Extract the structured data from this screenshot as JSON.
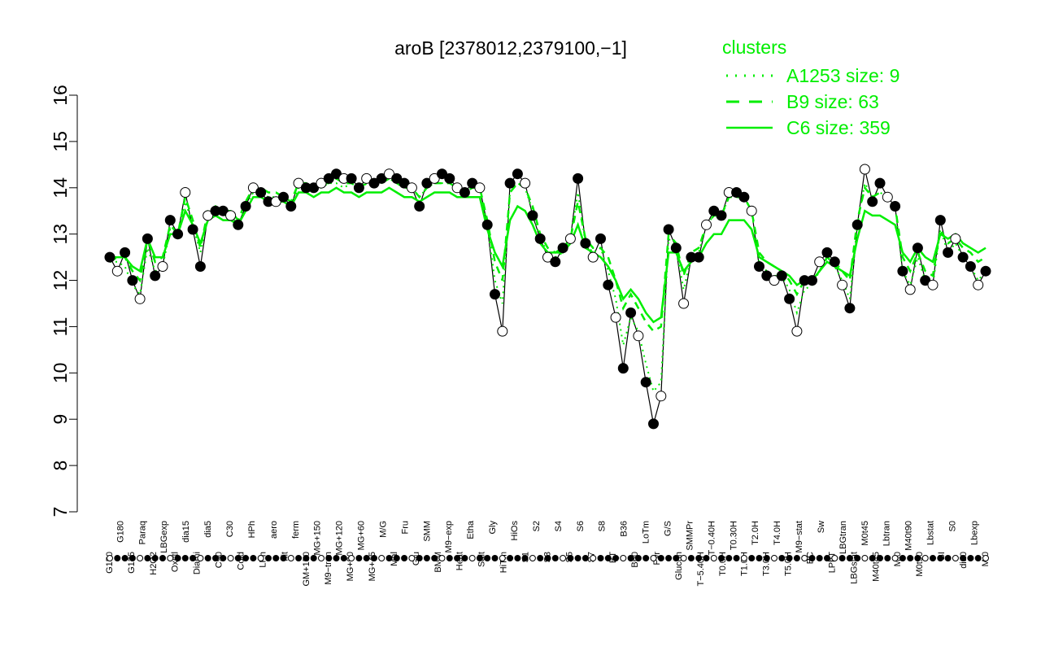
{
  "chart_data": {
    "type": "line",
    "title": "aroB [2378012,2379100,−1]",
    "xlabel": "",
    "ylabel": "",
    "ylim": [
      7,
      16
    ],
    "yticks": [
      7,
      8,
      9,
      10,
      11,
      12,
      13,
      14,
      15,
      16
    ],
    "grid": false,
    "legend": {
      "title": "clusters",
      "placement": "top-right",
      "entries": [
        {
          "label": "A1253 size: 9",
          "style": "dotted"
        },
        {
          "label": "B9 size: 63",
          "style": "dashed"
        },
        {
          "label": "C6 size: 359",
          "style": "solid"
        }
      ]
    },
    "colors": {
      "accent": "#00ee00",
      "points": "#000000"
    },
    "x_tick_labels": [
      "G150",
      "G180",
      "G135",
      "Paraq",
      "H2O2",
      "LBGexp",
      "Oxctl",
      "dia15",
      "Diami",
      "dia5",
      "C90",
      "C30",
      "Cold",
      "HPh",
      "LPh",
      "aero",
      "nit",
      "ferm",
      "GM+150",
      "MG+150",
      "M9−tran",
      "MG+120",
      "MG+90",
      "MG+60",
      "MG+45",
      "M/G",
      "Mal",
      "Fru",
      "Glu",
      "SMM",
      "BMM",
      "M9−exp",
      "Heat",
      "Etha",
      "Salt",
      "Gly",
      "HiTm",
      "HiOs",
      "S1",
      "S2",
      "S3",
      "S4",
      "S5",
      "S6",
      "S7",
      "S8",
      "BT",
      "B36",
      "B60",
      "LoTm",
      "Pyr",
      "G/S",
      "Glucon",
      "SMMPr",
      "T−5.40H",
      "T−0.40H",
      "T0.0H",
      "T0.30H",
      "T1.0H",
      "T2.0H",
      "T3.0H",
      "T4.0H",
      "T5.0H",
      "M9−stat",
      "BC",
      "Sw",
      "LPhT",
      "LBGtran",
      "LBGstat",
      "M0t45",
      "M40t45",
      "Lbtran",
      "Mt0",
      "M40t90",
      "M0t90",
      "Lbstat",
      "BI",
      "S0",
      "dia0",
      "Lbexp",
      "Mt0"
    ],
    "series": [
      {
        "name": "",
        "style": "solid-black",
        "y": [
          12.5,
          12.2,
          12.6,
          12.0,
          11.6,
          12.9,
          12.1,
          12.3,
          13.3,
          13.0,
          13.9,
          13.1,
          12.3,
          13.4,
          13.5,
          13.5,
          13.4,
          13.2,
          13.6,
          14.0,
          13.9,
          13.7,
          13.7,
          13.8,
          13.6,
          14.1,
          14.0,
          14.0,
          14.1,
          14.2,
          14.3,
          14.2,
          14.2,
          14.0,
          14.2,
          14.1,
          14.2,
          14.3,
          14.2,
          14.1,
          14.0,
          13.6,
          14.1,
          14.2,
          14.3,
          14.2,
          14.0,
          13.9,
          14.1,
          14.0,
          13.2,
          11.7,
          10.9,
          14.1,
          14.3,
          14.1,
          13.4,
          12.9,
          12.5,
          12.4,
          12.7,
          12.9,
          14.2,
          12.8,
          12.5,
          12.9,
          11.9,
          11.2,
          10.1,
          11.3,
          10.8,
          9.8,
          8.9,
          9.5,
          13.1,
          12.7,
          11.5,
          12.5,
          12.5,
          13.2,
          13.5,
          13.4,
          13.9,
          13.9,
          13.8,
          13.5,
          12.3,
          12.1,
          12.0,
          12.1,
          11.6,
          10.9,
          12.0,
          12.0,
          12.4,
          12.6,
          12.4,
          11.9,
          11.4,
          13.2,
          14.4,
          13.7,
          14.1,
          13.8,
          13.6,
          12.2,
          11.8,
          12.7,
          12.0,
          11.9,
          13.3,
          12.6,
          12.9,
          12.5,
          12.3,
          11.9,
          12.2
        ]
      },
      {
        "name": "A1253 size: 9",
        "style": "dotted",
        "y": [
          12.4,
          12.4,
          12.3,
          11.9,
          11.7,
          12.7,
          12.2,
          12.3,
          13.1,
          13.0,
          13.7,
          13.2,
          12.6,
          13.4,
          13.5,
          13.4,
          13.4,
          13.2,
          13.6,
          13.9,
          13.9,
          13.8,
          13.8,
          13.7,
          13.6,
          14.0,
          14.0,
          14.0,
          14.0,
          14.1,
          14.1,
          14.0,
          14.1,
          13.9,
          14.1,
          14.1,
          14.1,
          14.2,
          14.1,
          14.0,
          14.0,
          13.8,
          14.0,
          14.1,
          14.1,
          14.1,
          14.0,
          13.9,
          14.0,
          14.0,
          13.2,
          12.0,
          11.5,
          13.9,
          14.1,
          14.0,
          13.5,
          12.9,
          12.6,
          12.5,
          12.6,
          12.9,
          13.9,
          12.8,
          12.6,
          12.7,
          12.2,
          11.6,
          10.6,
          11.2,
          10.9,
          10.2,
          9.6,
          9.8,
          12.9,
          12.7,
          11.8,
          12.5,
          12.6,
          13.2,
          13.4,
          13.4,
          13.8,
          13.8,
          13.8,
          13.5,
          12.4,
          12.2,
          12.1,
          12.1,
          11.8,
          11.3,
          11.8,
          11.9,
          12.2,
          12.5,
          12.3,
          12.0,
          11.6,
          13.2,
          14.1,
          13.8,
          13.9,
          13.8,
          13.6,
          12.2,
          11.9,
          12.5,
          12.0,
          11.9,
          13.1,
          12.6,
          12.8,
          12.5,
          12.3,
          12.0,
          12.2
        ]
      },
      {
        "name": "B9 size: 63",
        "style": "dashed",
        "y": [
          12.4,
          12.5,
          12.5,
          12.2,
          12.0,
          12.9,
          12.4,
          12.5,
          13.2,
          13.0,
          13.8,
          13.3,
          12.7,
          13.5,
          13.6,
          13.5,
          13.5,
          13.3,
          13.7,
          14.0,
          14.0,
          13.9,
          13.9,
          13.8,
          13.7,
          14.1,
          14.1,
          14.0,
          14.1,
          14.1,
          14.2,
          14.1,
          14.1,
          14.0,
          14.1,
          14.1,
          14.1,
          14.2,
          14.1,
          14.0,
          14.0,
          13.8,
          14.0,
          14.1,
          14.1,
          14.1,
          14.0,
          13.9,
          14.0,
          14.0,
          13.3,
          12.4,
          12.0,
          13.9,
          14.1,
          14.0,
          13.6,
          13.0,
          12.7,
          12.6,
          12.7,
          12.9,
          13.7,
          12.9,
          12.7,
          12.7,
          12.5,
          12.0,
          11.4,
          11.7,
          11.4,
          11.1,
          10.9,
          11.0,
          13.0,
          12.8,
          12.1,
          12.6,
          12.7,
          13.2,
          13.4,
          13.4,
          13.8,
          13.8,
          13.8,
          13.5,
          12.6,
          12.4,
          12.3,
          12.2,
          12.0,
          11.7,
          12.0,
          12.0,
          12.2,
          12.5,
          12.4,
          12.2,
          12.0,
          13.3,
          14.0,
          13.8,
          13.9,
          13.8,
          13.6,
          12.5,
          12.2,
          12.6,
          12.2,
          12.1,
          13.1,
          12.8,
          12.9,
          12.7,
          12.6,
          12.4,
          12.5
        ]
      },
      {
        "name": "C6 size: 359",
        "style": "solid",
        "y": [
          12.5,
          12.5,
          12.5,
          12.3,
          12.2,
          12.9,
          12.5,
          12.5,
          13.0,
          13.0,
          13.5,
          13.2,
          12.8,
          13.3,
          13.4,
          13.3,
          13.3,
          13.2,
          13.5,
          13.8,
          13.8,
          13.7,
          13.7,
          13.7,
          13.6,
          13.9,
          13.9,
          13.8,
          13.9,
          13.9,
          14.0,
          13.9,
          13.9,
          13.8,
          13.9,
          13.9,
          13.9,
          14.0,
          13.9,
          13.8,
          13.8,
          13.7,
          13.8,
          13.9,
          13.9,
          13.9,
          13.8,
          13.8,
          13.8,
          13.8,
          13.1,
          12.6,
          12.3,
          13.3,
          13.6,
          13.5,
          13.2,
          12.8,
          12.6,
          12.6,
          12.6,
          12.8,
          13.2,
          12.7,
          12.6,
          12.5,
          12.3,
          12.0,
          11.6,
          11.8,
          11.6,
          11.3,
          11.1,
          11.2,
          12.6,
          12.6,
          12.2,
          12.4,
          12.5,
          12.8,
          13.0,
          13.0,
          13.3,
          13.3,
          13.3,
          13.1,
          12.5,
          12.4,
          12.3,
          12.2,
          12.1,
          11.9,
          12.0,
          12.0,
          12.2,
          12.4,
          12.3,
          12.2,
          12.1,
          12.9,
          13.5,
          13.4,
          13.4,
          13.3,
          13.2,
          12.6,
          12.4,
          12.7,
          12.5,
          12.4,
          13.0,
          12.9,
          13.0,
          12.8,
          12.7,
          12.6,
          12.7
        ]
      }
    ]
  }
}
